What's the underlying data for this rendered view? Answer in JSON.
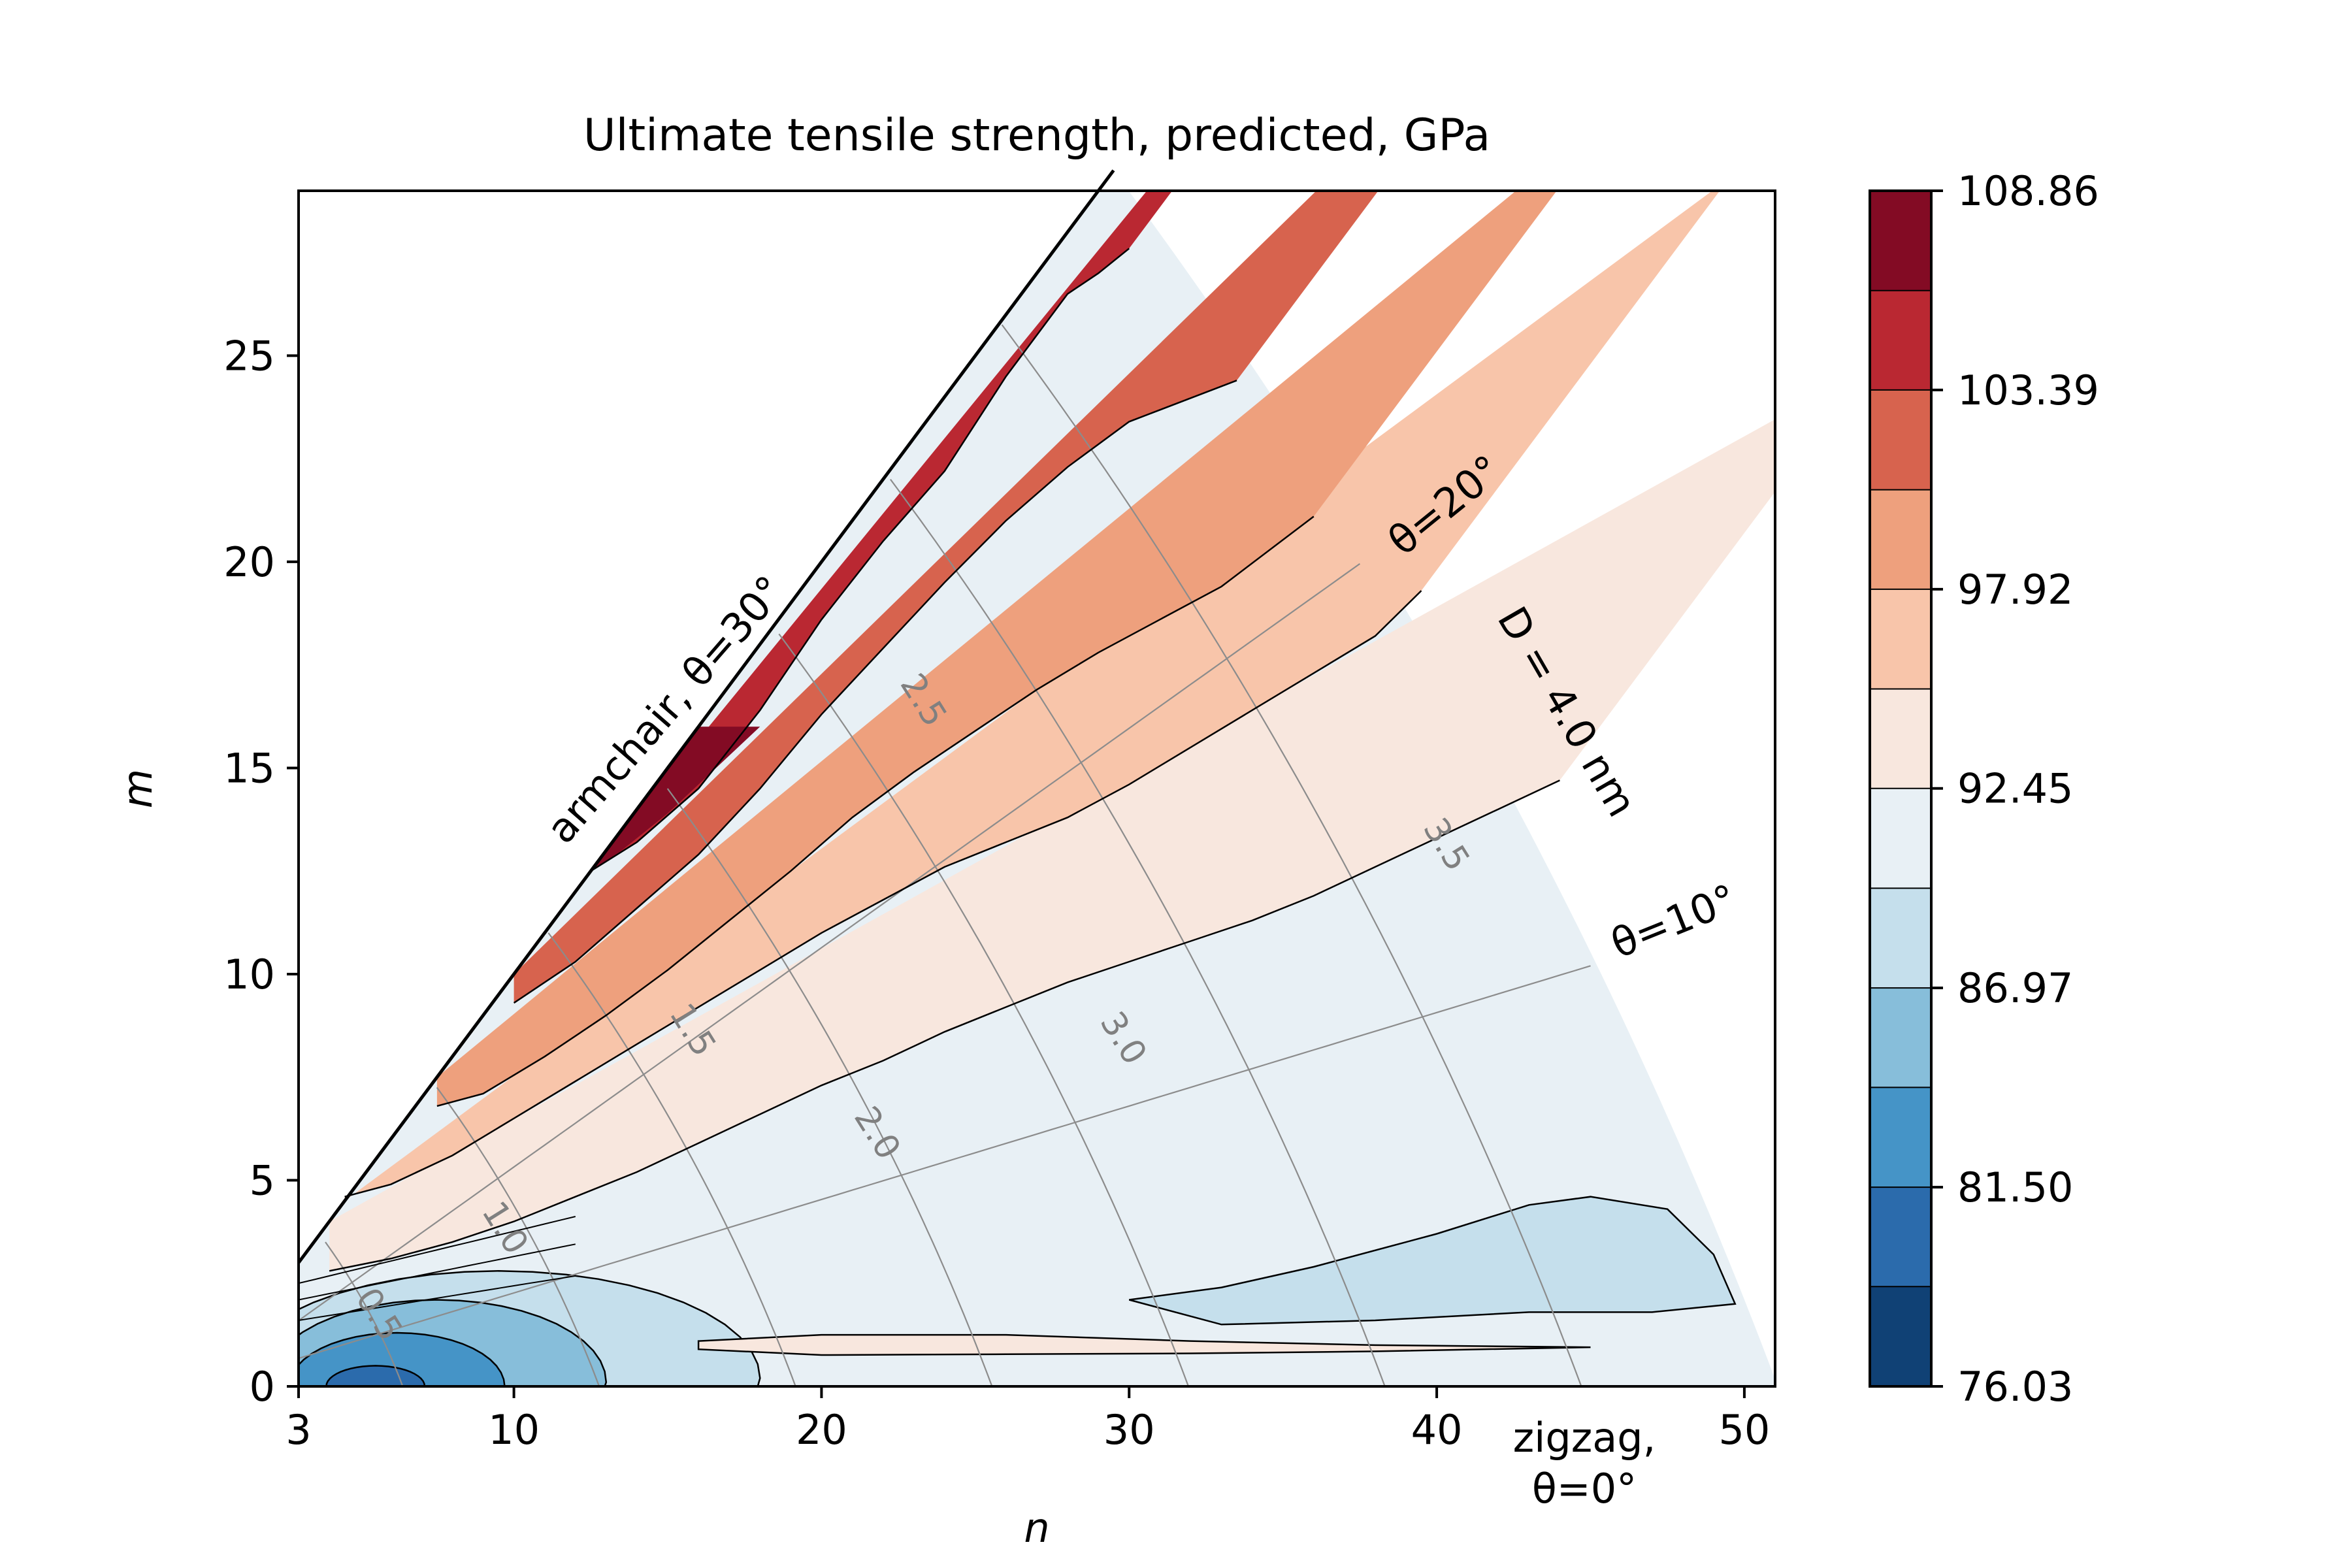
{
  "chart_data": {
    "type": "contourf",
    "title": "Ultimate tensile strength, predicted, GPa",
    "xlabel": "n",
    "ylabel": "m",
    "xlim": [
      3,
      51
    ],
    "ylim": [
      0,
      29
    ],
    "xticks": [
      3,
      10,
      20,
      30,
      40,
      50
    ],
    "yticks": [
      0,
      5,
      10,
      15,
      20,
      25
    ],
    "xtick_labels": [
      "3",
      "10",
      "20",
      "30",
      "40",
      "50"
    ],
    "ytick_labels": [
      "0",
      "5",
      "10",
      "15",
      "20",
      "25"
    ],
    "colorbar": {
      "levels": [
        76.03,
        78.77,
        81.5,
        84.24,
        86.97,
        89.71,
        92.45,
        95.18,
        97.92,
        100.65,
        103.39,
        106.12,
        108.86
      ],
      "tick_values": [
        76.03,
        81.5,
        86.97,
        92.45,
        97.92,
        103.39,
        108.86
      ],
      "tick_labels": [
        "76.03",
        "81.50",
        "86.97",
        "92.45",
        "97.92",
        "103.39",
        "108.86"
      ],
      "colors": [
        "#104175",
        "#2b6bac",
        "#4594c7",
        "#87beda",
        "#c5dfec",
        "#e8f0f5",
        "#f8e7de",
        "#f8c5aa",
        "#eea07d",
        "#d7634e",
        "#ba2832",
        "#830b24"
      ]
    },
    "band_boundaries": [
      {
        "level": 103.39,
        "points": [
          [
            12.5,
            12.5
          ],
          [
            14,
            13.2
          ],
          [
            16,
            14.5
          ],
          [
            18,
            16.4
          ],
          [
            20,
            18.6
          ],
          [
            22,
            20.5
          ],
          [
            24,
            22.2
          ],
          [
            26,
            24.5
          ],
          [
            28,
            26.5
          ],
          [
            29,
            27
          ],
          [
            30,
            27.6
          ]
        ]
      },
      {
        "level": 100.65,
        "points": [
          [
            10,
            9.3
          ],
          [
            12,
            10.3
          ],
          [
            14,
            11.6
          ],
          [
            16,
            12.9
          ],
          [
            18,
            14.5
          ],
          [
            20,
            16.3
          ],
          [
            22,
            17.9
          ],
          [
            24,
            19.5
          ],
          [
            26,
            21
          ],
          [
            28,
            22.3
          ],
          [
            30,
            23.4
          ],
          [
            33.5,
            24.4
          ]
        ]
      },
      {
        "level": 97.92,
        "points": [
          [
            7.5,
            6.8
          ],
          [
            9,
            7.1
          ],
          [
            11,
            8
          ],
          [
            13,
            9
          ],
          [
            15,
            10.1
          ],
          [
            17,
            11.3
          ],
          [
            19,
            12.5
          ],
          [
            21,
            13.8
          ],
          [
            23,
            14.9
          ],
          [
            25,
            15.9
          ],
          [
            27,
            16.9
          ],
          [
            29,
            17.8
          ],
          [
            31,
            18.6
          ],
          [
            33,
            19.4
          ],
          [
            36,
            21.1
          ]
        ]
      },
      {
        "level": 95.18,
        "points": [
          [
            4.5,
            4.6
          ],
          [
            6,
            4.9
          ],
          [
            8,
            5.6
          ],
          [
            10,
            6.5
          ],
          [
            12,
            7.4
          ],
          [
            14,
            8.3
          ],
          [
            16,
            9.2
          ],
          [
            18,
            10.1
          ],
          [
            20,
            11
          ],
          [
            22,
            11.8
          ],
          [
            24,
            12.6
          ],
          [
            26,
            13.2
          ],
          [
            28,
            13.8
          ],
          [
            30,
            14.6
          ],
          [
            32,
            15.5
          ],
          [
            34,
            16.4
          ],
          [
            36,
            17.3
          ],
          [
            38,
            18.2
          ],
          [
            39.5,
            19.3
          ]
        ]
      },
      {
        "level": 92.45,
        "points": [
          [
            4,
            2.8
          ],
          [
            6,
            3.1
          ],
          [
            8,
            3.5
          ],
          [
            10,
            4
          ],
          [
            12,
            4.6
          ],
          [
            14,
            5.2
          ],
          [
            16,
            5.9
          ],
          [
            18,
            6.6
          ],
          [
            20,
            7.3
          ],
          [
            22,
            7.9
          ],
          [
            24,
            8.6
          ],
          [
            26,
            9.2
          ],
          [
            28,
            9.8
          ],
          [
            30,
            10.3
          ],
          [
            32,
            10.8
          ],
          [
            34,
            11.3
          ],
          [
            36,
            11.9
          ],
          [
            38,
            12.6
          ],
          [
            40,
            13.3
          ],
          [
            42,
            14
          ],
          [
            44,
            14.7
          ]
        ]
      }
    ],
    "islands": [
      {
        "level": 89.71,
        "points": [
          [
            30,
            2.1
          ],
          [
            33,
            2.4
          ],
          [
            36,
            2.9
          ],
          [
            40,
            3.7
          ],
          [
            43,
            4.4
          ],
          [
            45,
            4.6
          ],
          [
            47.5,
            4.3
          ],
          [
            49,
            3.2
          ],
          [
            49.7,
            2
          ],
          [
            47,
            1.8
          ],
          [
            43,
            1.8
          ],
          [
            38,
            1.6
          ],
          [
            33,
            1.5
          ]
        ]
      },
      {
        "level": 92.45,
        "points": [
          [
            16,
            1.1
          ],
          [
            20,
            1.25
          ],
          [
            26,
            1.25
          ],
          [
            32,
            1.1
          ],
          [
            38,
            1
          ],
          [
            45,
            0.95
          ],
          [
            38,
            0.85
          ],
          [
            32,
            0.8
          ],
          [
            26,
            0.78
          ],
          [
            20,
            0.76
          ],
          [
            16,
            0.9
          ]
        ]
      }
    ],
    "diameter_contours": [
      {
        "label": "0.5",
        "value_nm": 0.5
      },
      {
        "label": "1.0",
        "value_nm": 1.0
      },
      {
        "label": "1.5",
        "value_nm": 1.5
      },
      {
        "label": "2.0",
        "value_nm": 2.0
      },
      {
        "label": "2.5",
        "value_nm": 2.5
      },
      {
        "label": "3.0",
        "value_nm": 3.0
      },
      {
        "label": "3.5",
        "value_nm": 3.5
      }
    ],
    "chiral_angle_lines": [
      10,
      20
    ],
    "annotations": {
      "armchair": "armchair, θ=30°",
      "theta20": "θ=20°",
      "theta10": "θ=10°",
      "diameter": "D = 4.0 nm",
      "zigzag_line1": "zigzag,",
      "zigzag_line2": "θ=0°"
    }
  }
}
